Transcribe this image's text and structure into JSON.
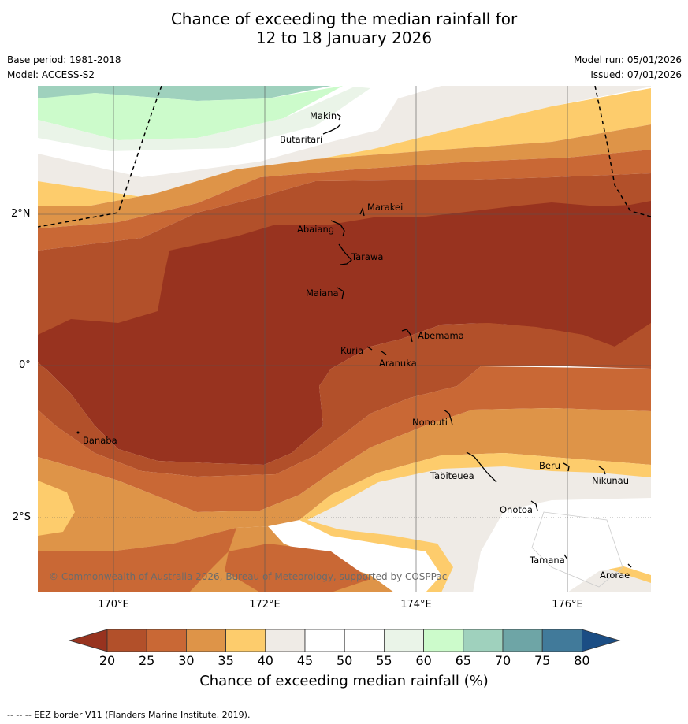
{
  "title": {
    "line1": "Chance of exceeding the median rainfall for",
    "line2": "12 to 18 January 2026"
  },
  "meta": {
    "base_period": "Base period: 1981-2018",
    "model": "Model: ACCESS-S2",
    "model_run": "Model run: 05/01/2026",
    "issued": "Issued: 07/01/2026"
  },
  "axes": {
    "lon_labels": [
      "170°E",
      "172°E",
      "174°E",
      "176°E"
    ],
    "lat_labels": [
      "2°N",
      "0°",
      "2°S"
    ]
  },
  "places": [
    {
      "name": "Makin"
    },
    {
      "name": "Butaritari"
    },
    {
      "name": "Marakei"
    },
    {
      "name": "Abaiang"
    },
    {
      "name": "Tarawa"
    },
    {
      "name": "Maiana"
    },
    {
      "name": "Abemama"
    },
    {
      "name": "Kuria"
    },
    {
      "name": "Aranuka"
    },
    {
      "name": "Nonouti"
    },
    {
      "name": "Banaba"
    },
    {
      "name": "Beru"
    },
    {
      "name": "Tabiteuea"
    },
    {
      "name": "Nikunau"
    },
    {
      "name": "Onotoa"
    },
    {
      "name": "Tamana"
    },
    {
      "name": "Arorae"
    }
  ],
  "copyright": "© Commonwealth of Australia 2026, Bureau of Meteorology, supported by COSPPac",
  "colorbar": {
    "ticks": [
      "20",
      "25",
      "30",
      "35",
      "40",
      "45",
      "50",
      "55",
      "60",
      "65",
      "70",
      "75",
      "80"
    ],
    "colors": [
      "#b2502a",
      "#c96835",
      "#de9448",
      "#fdcc6c",
      "#efebe6",
      "#ffffff",
      "#ffffff",
      "#eaf4e8",
      "#ccfbcb",
      "#9fd1bd",
      "#6ea5a6",
      "#417a9a"
    ],
    "low_extend_color": "#98331f",
    "high_extend_color": "#1b4d84",
    "label": "Chance of exceeding median rainfall (%)"
  },
  "footer": "--  --  -- EEZ border V11 (Flanders Marine Institute, 2019)."
}
